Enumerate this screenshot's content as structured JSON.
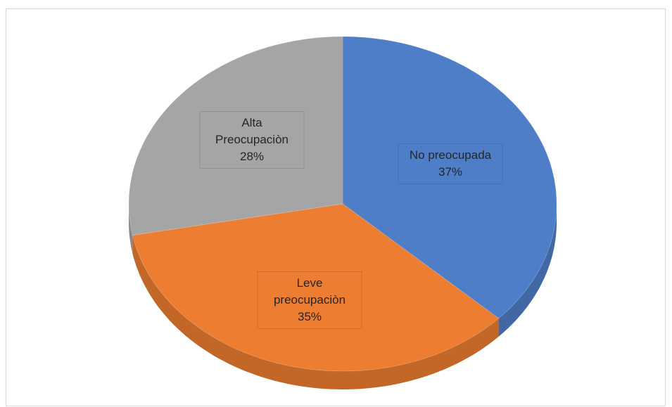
{
  "chart_data": {
    "type": "pie",
    "categories": [
      "No preocupada",
      "Leve preocupaciòn",
      "Alta Preocupaciòn"
    ],
    "values": [
      37,
      35,
      28
    ],
    "value_labels": [
      "37%",
      "35%",
      "28%"
    ],
    "colors": [
      "#4f7ec8",
      "#ed7d31",
      "#a5a5a5"
    ]
  }
}
